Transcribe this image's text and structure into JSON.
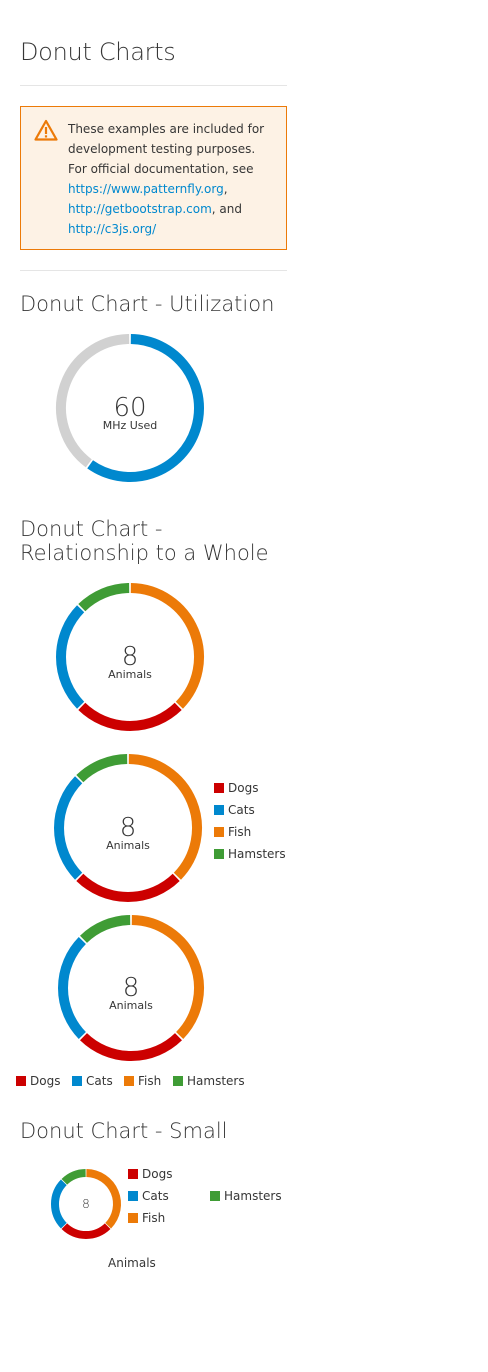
{
  "page": {
    "title": "Donut Charts"
  },
  "alert": {
    "text_1": "These examples are included for development testing purposes. For official documentation, see",
    "link_1": "https://www.patternfly.org",
    "sep_1": ",",
    "link_2": "http://getbootstrap.com",
    "sep_2": ", and",
    "link_3": "http://c3js.org/",
    "icon": "warning-triangle-icon",
    "colors": {
      "border": "#ec7a08",
      "background": "#fdf2e5"
    }
  },
  "sections": {
    "utilization": {
      "heading": "Donut Chart - Utilization"
    },
    "relationship": {
      "heading": "Donut Chart - Relationship to a Whole"
    },
    "small": {
      "heading": "Donut Chart - Small"
    }
  },
  "chart_data": [
    {
      "id": "utilization",
      "type": "pie",
      "subtype": "donut",
      "series": [
        {
          "name": "",
          "value": 60,
          "color": "#0088ce"
        },
        {
          "name": "",
          "value": 40,
          "color": "#d1d1d1"
        }
      ],
      "center_value": "60",
      "center_label": "MHz Used",
      "legend": "none"
    },
    {
      "id": "relationship-no-legend",
      "type": "pie",
      "subtype": "donut",
      "series": [
        {
          "name": "Dogs",
          "value": 2,
          "color": "#cc0000"
        },
        {
          "name": "Cats",
          "value": 2,
          "color": "#0088ce"
        },
        {
          "name": "Fish",
          "value": 3,
          "color": "#ec7a08"
        },
        {
          "name": "Hamsters",
          "value": 1,
          "color": "#3f9c35"
        }
      ],
      "center_value": "8",
      "center_label": "Animals",
      "legend": "none"
    },
    {
      "id": "relationship-right-legend",
      "type": "pie",
      "subtype": "donut",
      "series": [
        {
          "name": "Dogs",
          "value": 2,
          "color": "#cc0000"
        },
        {
          "name": "Cats",
          "value": 2,
          "color": "#0088ce"
        },
        {
          "name": "Fish",
          "value": 3,
          "color": "#ec7a08"
        },
        {
          "name": "Hamsters",
          "value": 1,
          "color": "#3f9c35"
        }
      ],
      "center_value": "8",
      "center_label": "Animals",
      "legend": "right"
    },
    {
      "id": "relationship-bottom-legend",
      "type": "pie",
      "subtype": "donut",
      "series": [
        {
          "name": "Dogs",
          "value": 2,
          "color": "#cc0000"
        },
        {
          "name": "Cats",
          "value": 2,
          "color": "#0088ce"
        },
        {
          "name": "Fish",
          "value": 3,
          "color": "#ec7a08"
        },
        {
          "name": "Hamsters",
          "value": 1,
          "color": "#3f9c35"
        }
      ],
      "center_value": "8",
      "center_label": "Animals",
      "legend": "bottom"
    },
    {
      "id": "small",
      "type": "pie",
      "subtype": "donut",
      "series": [
        {
          "name": "Dogs",
          "value": 2,
          "color": "#cc0000"
        },
        {
          "name": "Cats",
          "value": 2,
          "color": "#0088ce"
        },
        {
          "name": "Fish",
          "value": 3,
          "color": "#ec7a08"
        },
        {
          "name": "Hamsters",
          "value": 1,
          "color": "#3f9c35"
        }
      ],
      "center_value": "8",
      "center_label": "Animals",
      "legend": "right"
    }
  ]
}
